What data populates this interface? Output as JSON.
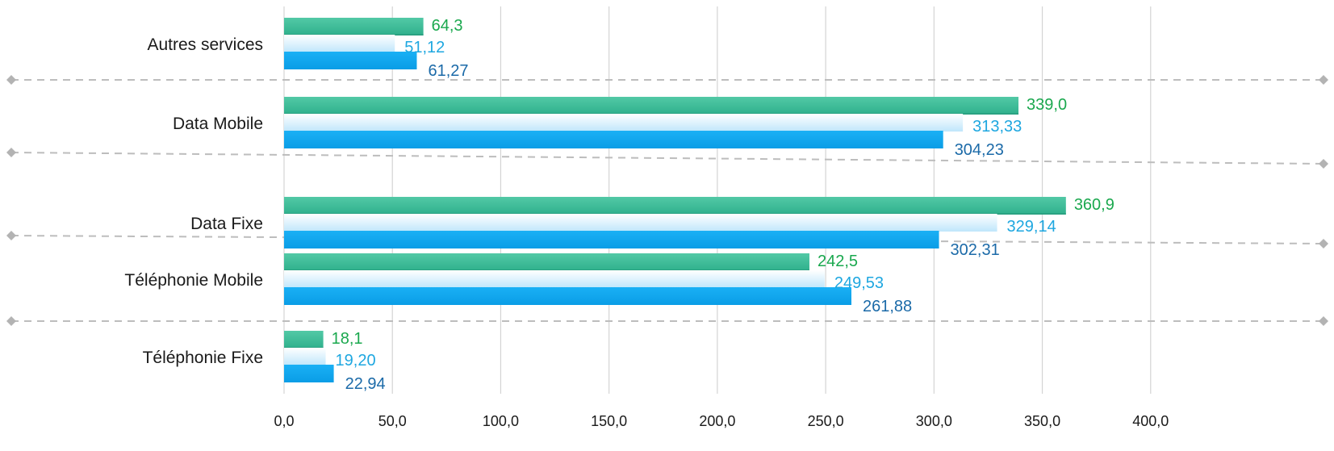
{
  "chart_data": {
    "type": "bar",
    "orientation": "horizontal",
    "categories": [
      "Autres services",
      "Data Mobile",
      "Data Fixe",
      "Téléphonie Mobile",
      "Téléphonie Fixe"
    ],
    "series": [
      {
        "values": [
          64.3,
          339.0,
          360.9,
          242.5,
          18.1
        ],
        "labels": [
          "64,3",
          "339,0",
          "360,9",
          "242,5",
          "18,1"
        ],
        "color": "#3dbf98",
        "label_color": "#1aa84e"
      },
      {
        "values": [
          51.12,
          313.33,
          329.14,
          249.53,
          19.2
        ],
        "labels": [
          "51,12",
          "313,33",
          "329,14",
          "249,53",
          "19,20"
        ],
        "color": "#d6effc",
        "label_color": "#1ea7e0"
      },
      {
        "values": [
          61.27,
          304.23,
          302.31,
          261.88,
          22.94
        ],
        "labels": [
          "61,27",
          "304,23",
          "302,31",
          "261,88",
          "22,94"
        ],
        "color": "#0ea5ee",
        "label_color": "#1b6aa8"
      }
    ],
    "xlim": [
      0,
      450
    ],
    "ticks": [
      0,
      50,
      100,
      150,
      200,
      250,
      300,
      350,
      400
    ],
    "tick_labels": [
      "0,0",
      "50,0",
      "100,0",
      "150,0",
      "200,0",
      "250,0",
      "300,0",
      "350,0",
      "400,0"
    ],
    "grid": true,
    "legend": "none",
    "title": "",
    "xlabel": "",
    "ylabel": ""
  }
}
